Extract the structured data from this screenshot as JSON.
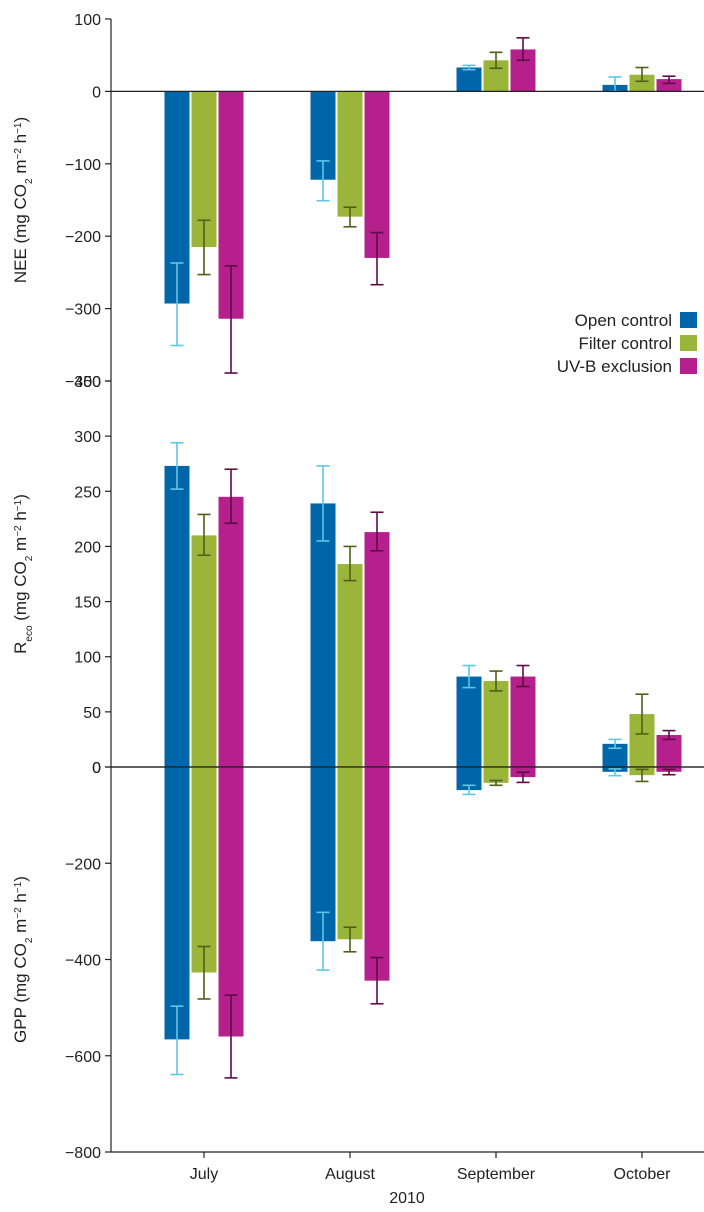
{
  "colors": {
    "open": "#0066aa",
    "filter": "#9bb43a",
    "uvb": "#b5208d",
    "err_open": "#5cc8e6",
    "err_filter": "#4f6019",
    "err_uvb": "#5e0d43"
  },
  "chart_data": {
    "type": "bar",
    "categories": [
      "July",
      "August",
      "September",
      "October"
    ],
    "xlabel": "2010",
    "legend": {
      "placement": "bottom-right of top panel",
      "entries": [
        "Open control",
        "Filter control",
        "UV-B exclusion"
      ]
    },
    "panels": [
      {
        "id": "nee",
        "ylabel": "NEE (mg CO2 m−2 h−1)",
        "ylim": [
          -400,
          100
        ],
        "yticks": [
          100,
          0,
          -100,
          -200,
          -300,
          -400
        ],
        "series": [
          {
            "name": "Open control",
            "values": [
              -293,
              -122,
              33,
              9
            ],
            "err_low": [
              -351,
              -151,
              30,
              0
            ],
            "err_high": [
              -237,
              -96,
              36,
              20
            ]
          },
          {
            "name": "Filter control",
            "values": [
              -215,
              -173,
              43,
              23
            ],
            "err_low": [
              -253,
              -187,
              32,
              14
            ],
            "err_high": [
              -178,
              -160,
              54,
              33
            ]
          },
          {
            "name": "UV-B exclusion",
            "values": [
              -314,
              -230,
              58,
              17
            ],
            "err_low": [
              -389,
              -267,
              43,
              11
            ],
            "err_high": [
              -241,
              -195,
              74,
              21
            ]
          }
        ]
      },
      {
        "id": "reco",
        "ylabel": "Reco (mg CO2 m−2 h−1)",
        "ylim": [
          0,
          350
        ],
        "yticks": [
          350,
          300,
          250,
          200,
          150,
          100,
          50,
          0
        ],
        "series": [
          {
            "name": "Open control",
            "values": [
              273,
              239,
              82,
              21
            ],
            "err_low": [
              252,
              205,
              72,
              17
            ],
            "err_high": [
              294,
              273,
              92,
              25
            ]
          },
          {
            "name": "Filter control",
            "values": [
              210,
              184,
              78,
              48
            ],
            "err_low": [
              192,
              169,
              69,
              30
            ],
            "err_high": [
              229,
              200,
              87,
              66
            ]
          },
          {
            "name": "UV-B exclusion",
            "values": [
              245,
              213,
              82,
              29
            ],
            "err_low": [
              221,
              196,
              73,
              25
            ],
            "err_high": [
              270,
              231,
              92,
              33
            ]
          }
        ]
      },
      {
        "id": "gpp",
        "ylabel": "GPP (mg CO2 m−2 h−1)",
        "ylim": [
          -800,
          0
        ],
        "yticks": [
          0,
          -200,
          -400,
          -600,
          -800
        ],
        "series": [
          {
            "name": "Open control",
            "values": [
              -566,
              -362,
              -48,
              -10
            ],
            "err_low": [
              -639,
              -422,
              -57,
              -18
            ],
            "err_high": [
              -497,
              -302,
              -38,
              -4
            ]
          },
          {
            "name": "Filter control",
            "values": [
              -427,
              -358,
              -33,
              -17
            ],
            "err_low": [
              -482,
              -384,
              -38,
              -30
            ],
            "err_high": [
              -373,
              -333,
              -28,
              -5
            ]
          },
          {
            "name": "UV-B exclusion",
            "values": [
              -560,
              -444,
              -21,
              -10
            ],
            "err_low": [
              -646,
              -492,
              -32,
              -16
            ],
            "err_high": [
              -474,
              -396,
              -11,
              -5
            ]
          }
        ]
      }
    ]
  }
}
